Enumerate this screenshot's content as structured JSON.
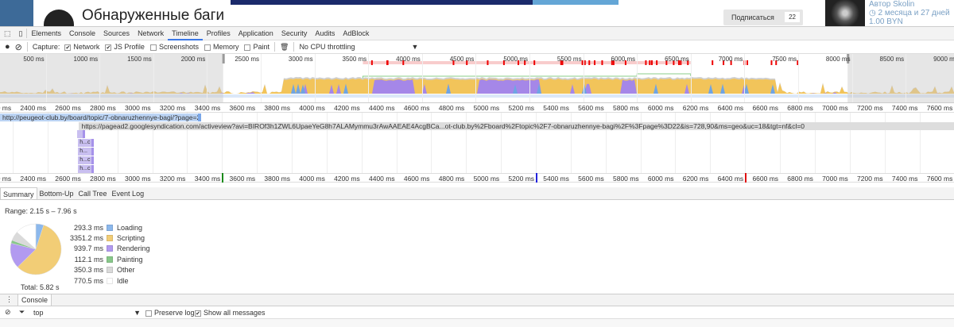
{
  "page": {
    "title": "Обнаруженные баги",
    "subscribe_label": "Подписаться",
    "subscribe_count": "22",
    "author": "Автор Skolin",
    "time_ago": "2 месяца и 27 дней",
    "price": "1.00 BYN"
  },
  "devtools": {
    "tabs": [
      "Elements",
      "Console",
      "Sources",
      "Network",
      "Timeline",
      "Profiles",
      "Application",
      "Security",
      "Audits",
      "AdBlock"
    ],
    "active_tab": "Timeline"
  },
  "capture": {
    "label": "Capture:",
    "options": [
      {
        "label": "Network",
        "checked": true
      },
      {
        "label": "JS Profile",
        "checked": true
      },
      {
        "label": "Screenshots",
        "checked": false
      },
      {
        "label": "Memory",
        "checked": false
      },
      {
        "label": "Paint",
        "checked": false
      }
    ],
    "throttling": "No CPU throttling"
  },
  "overview": {
    "ticks": [
      "500 ms",
      "1000 ms",
      "1500 ms",
      "2000 ms",
      "2500 ms",
      "3000 ms",
      "3500 ms",
      "4000 ms",
      "4500 ms",
      "5000 ms",
      "5500 ms",
      "6000 ms",
      "6500 ms",
      "7000 ms",
      "7500 ms",
      "8000 ms",
      "8500 ms",
      "9000 ms",
      "9500 ms"
    ],
    "selection_ms": [
      2150,
      7960
    ]
  },
  "ruler": {
    "ticks": [
      "2200 ms",
      "2400 ms",
      "2600 ms",
      "2800 ms",
      "3000 ms",
      "3200 ms",
      "3400 ms",
      "3600 ms",
      "3800 ms",
      "4000 ms",
      "4200 ms",
      "4400 ms",
      "4600 ms",
      "4800 ms",
      "5000 ms",
      "5200 ms",
      "5400 ms",
      "5600 ms",
      "5800 ms",
      "6000 ms",
      "6200 ms",
      "6400 ms",
      "6600 ms",
      "6800 ms",
      "7000 ms",
      "7200 ms",
      "7400 ms",
      "7600 ms"
    ]
  },
  "network": {
    "main_request": "http://peugeot-club.by/board/topic/7-obnaruzhennye-bagi/?page=22",
    "ad_request": "https://pagead2.googlesyndication.com/activeview?avi=BIROf3h1ZWL6UpaeYeG8h7ALAMymmu3rAwAAEAE4AcgBCa...ot-club.by%2Fboard%2Ftopic%2F7-obnaruzhennye-bagi%2F%3Fpage%3D22&is=728,90&ms=geo&uc=18&tgt=nf&cl=0",
    "small_items": [
      "",
      "h...c",
      "h...",
      "h...c",
      "h...c"
    ]
  },
  "markers": [
    {
      "ms": 3400,
      "color": "#1a8a1a"
    },
    {
      "ms": 5200,
      "color": "#2222dd"
    },
    {
      "ms": 6400,
      "color": "#e01010"
    }
  ],
  "panel_tabs": [
    "Summary",
    "Bottom-Up",
    "Call Tree",
    "Event Log"
  ],
  "summary": {
    "range": "Range: 2.15 s – 7.96 s",
    "total": "Total: 5.82 s",
    "categories": [
      {
        "label": "Loading",
        "value": "293.3 ms",
        "ms": 293.3,
        "color": "#8cb8ec"
      },
      {
        "label": "Scripting",
        "value": "3351.2 ms",
        "ms": 3351.2,
        "color": "#f2cd76"
      },
      {
        "label": "Rendering",
        "value": "939.7 ms",
        "ms": 939.7,
        "color": "#b29af0"
      },
      {
        "label": "Painting",
        "value": "112.1 ms",
        "ms": 112.1,
        "color": "#88c88a"
      },
      {
        "label": "Other",
        "value": "350.3 ms",
        "ms": 350.3,
        "color": "#dadada"
      },
      {
        "label": "Idle",
        "value": "770.5 ms",
        "ms": 770.5,
        "color": "#ffffff"
      }
    ]
  },
  "console": {
    "tab": "Console",
    "context": "top",
    "preserve_log": "Preserve log",
    "show_all": "Show all messages",
    "preserve_checked": false,
    "show_all_checked": true
  }
}
